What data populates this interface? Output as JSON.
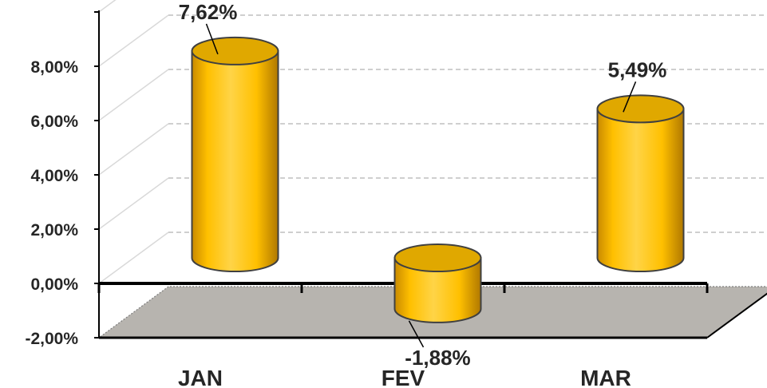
{
  "chart_data": {
    "type": "bar",
    "style": "3d-cylinder",
    "categories": [
      "JAN",
      "FEV",
      "MAR"
    ],
    "values": [
      7.62,
      -1.88,
      5.49
    ],
    "data_labels": [
      "7,62%",
      "-1,88%",
      "5,49%"
    ],
    "y_tick_labels": [
      "-2,00%",
      "0,00%",
      "2,00%",
      "4,00%",
      "6,00%",
      "8,00%"
    ],
    "y_ticks": [
      -2,
      0,
      2,
      4,
      6,
      8
    ],
    "ylim": [
      -2,
      10
    ],
    "grid": true,
    "legend": "none",
    "title": "",
    "xlabel": "",
    "ylabel": "",
    "colors": {
      "bar_fill": "#FFC000",
      "bar_top": "#E0A800",
      "bar_outline": "#404040",
      "floor": "#B7B4AF",
      "grid": "#BFBFBF",
      "axis": "#000000",
      "text": "#262626"
    }
  }
}
